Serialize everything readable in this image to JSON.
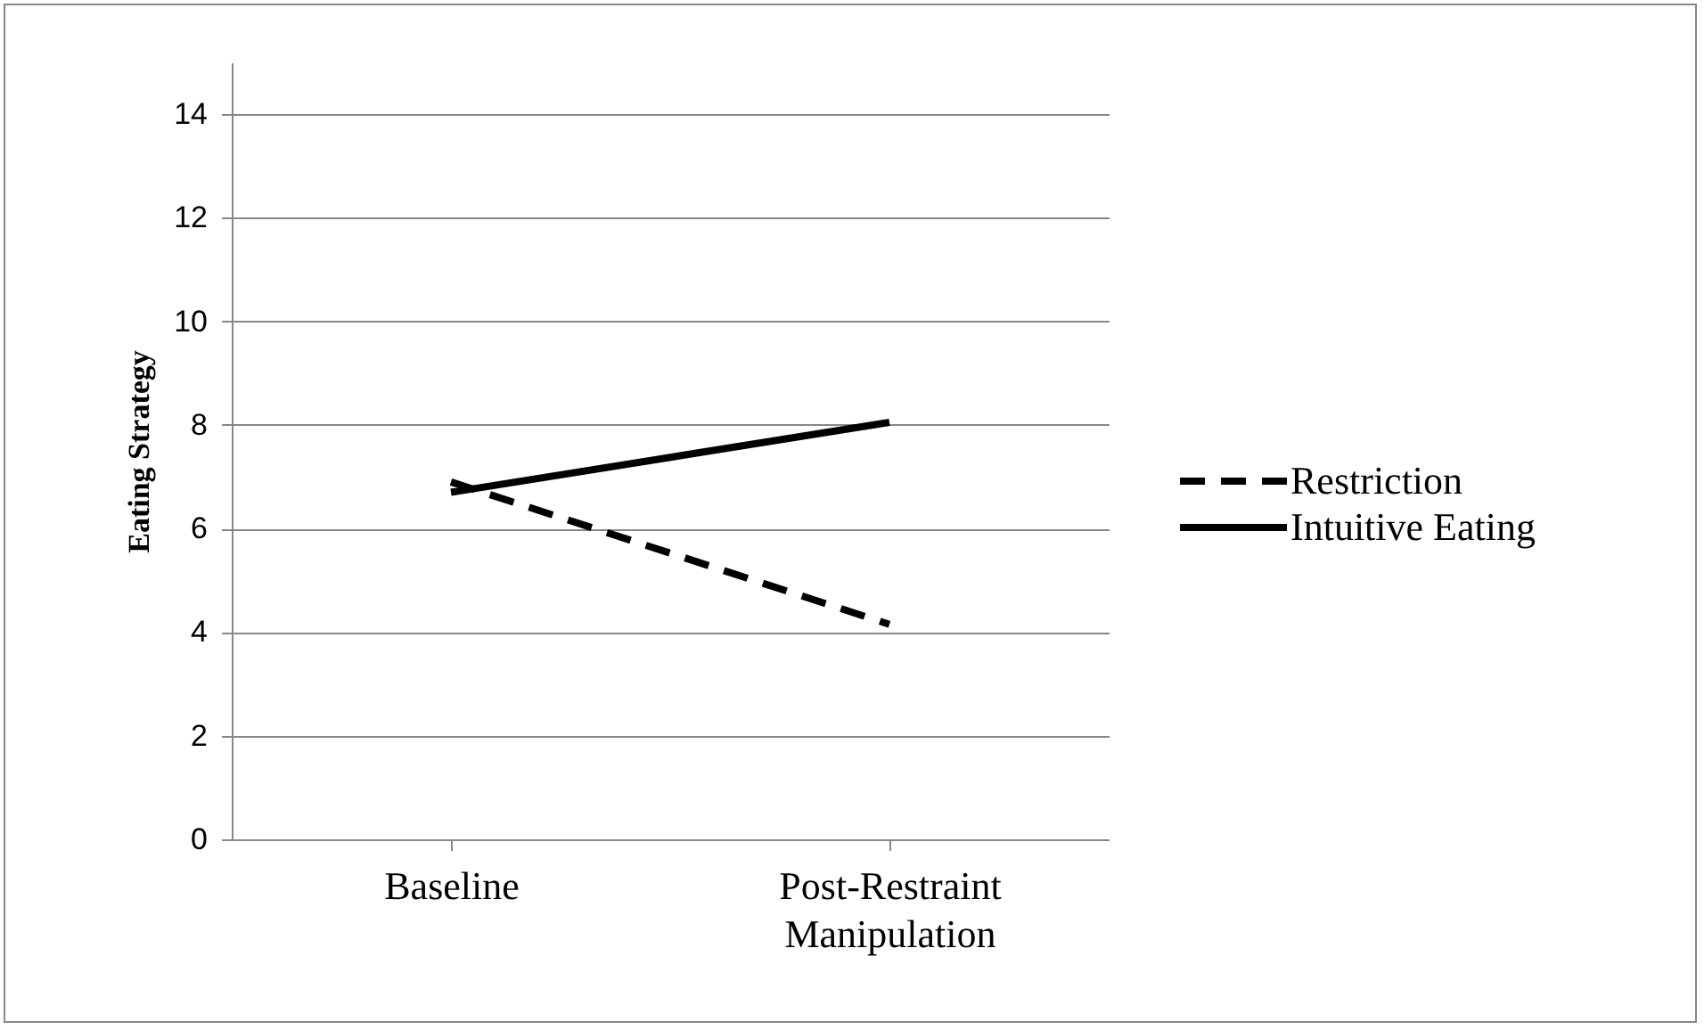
{
  "chart_data": {
    "type": "line",
    "ylabel": "Eating Strategy",
    "categories": [
      "Baseline",
      "Post-Restraint Manipulation"
    ],
    "series": [
      {
        "name": "Restriction",
        "color": "#000000",
        "line_style": "dashed",
        "values": [
          6.9,
          4.15
        ]
      },
      {
        "name": "Intuitive Eating",
        "color": "#000000",
        "line_style": "solid",
        "values": [
          6.7,
          8.05
        ]
      }
    ],
    "ylim": [
      0,
      15
    ],
    "yticks": [
      0,
      2,
      4,
      6,
      8,
      10,
      12,
      14
    ],
    "grid": "y",
    "legend": "right",
    "marker": "none"
  }
}
